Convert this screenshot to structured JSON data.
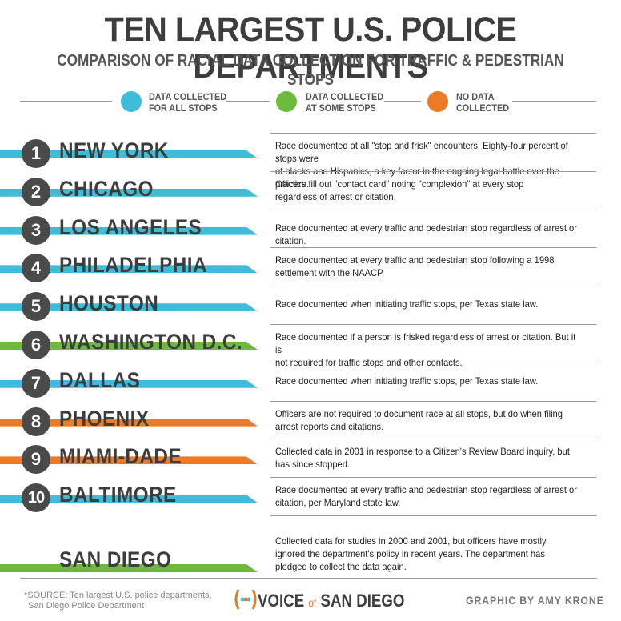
{
  "header": {
    "title": "TEN LARGEST U.S. POLICE DEPARTMENTS",
    "subtitle": "COMPARISON OF RACIAL DATA COLLECTION FOR TRAFFIC & PEDESTRIAN STOPS"
  },
  "colors": {
    "all": "#3fbcd8",
    "some": "#6cbb3e",
    "none": "#ed7a26",
    "rank_circle": "#4a4a4a"
  },
  "legend": [
    {
      "category": "all",
      "line1": "DATA COLLECTED",
      "line2": "FOR ALL STOPS"
    },
    {
      "category": "some",
      "line1": "DATA COLLECTED",
      "line2": "AT SOME STOPS"
    },
    {
      "category": "none",
      "line1": "NO DATA",
      "line2": "COLLECTED"
    }
  ],
  "departments": [
    {
      "rank": "1",
      "city": "NEW YORK",
      "category": "all",
      "line1": "Race documented at all \"stop and frisk\" encounters. Eighty-four percent of stops were",
      "line2": "of blacks and Hispanics, a key factor in the ongoing legal battle over the practice."
    },
    {
      "rank": "2",
      "city": "CHICAGO",
      "category": "all",
      "line1": "Officers fill out \"contact card\" noting \"complexion\" at every stop",
      "line2": "regardless of arrest or citation."
    },
    {
      "rank": "3",
      "city": "LOS ANGELES",
      "category": "all",
      "line1": "Race documented at every traffic and pedestrian stop regardless of arrest or citation.",
      "line2": ""
    },
    {
      "rank": "4",
      "city": "PHILADELPHIA",
      "category": "all",
      "line1": "Race documented at every traffic and pedestrian stop following a 1998",
      "line2": "settlement with the NAACP."
    },
    {
      "rank": "5",
      "city": "HOUSTON",
      "category": "all",
      "line1": "Race documented when initiating traffic stops, per Texas state law.",
      "line2": ""
    },
    {
      "rank": "6",
      "city": "WASHINGTON D.C.",
      "category": "some",
      "line1": "Race documented if a person is frisked regardless of arrest or citation. But it is",
      "line2": "not required for traffic stops and other contacts."
    },
    {
      "rank": "7",
      "city": "DALLAS",
      "category": "all",
      "line1": "Race documented when initiating traffic stops, per Texas state law.",
      "line2": ""
    },
    {
      "rank": "8",
      "city": "PHOENIX",
      "category": "none",
      "line1": "Officers are not required to document race at all stops, but do when filing",
      "line2": "arrest reports and citations."
    },
    {
      "rank": "9",
      "city": "MIAMI-DADE",
      "category": "none",
      "line1": "Collected data in 2001 in response to a Citizen's Review Board inquiry, but",
      "line2": "has since stopped."
    },
    {
      "rank": "10",
      "city": "BALTIMORE",
      "category": "all",
      "line1": "Race documented at every traffic and pedestrian stop regardless of arrest or",
      "line2": "citation, per Maryland state law."
    }
  ],
  "san_diego": {
    "city": "SAN DIEGO",
    "category": "some",
    "line1": "Collected data for studies in 2000 and 2001, but officers have mostly",
    "line2": "ignored the department's policy in recent years. The department has",
    "line3": "pledged to collect the data again."
  },
  "footer": {
    "source_line1": "*SOURCE: Ten largest U.S. police departments,",
    "source_line2": "San Diego Police Department",
    "brand_part1": "VOICE ",
    "brand_of": "of",
    "brand_part2": " SAN DIEGO",
    "credit": "GRAPHIC BY AMY KRONE"
  }
}
